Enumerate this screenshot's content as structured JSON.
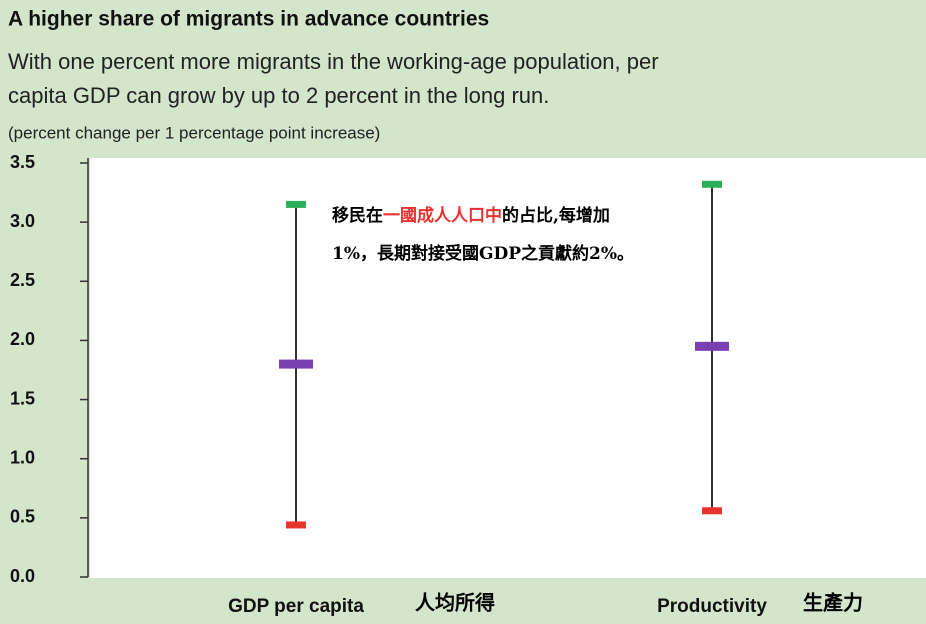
{
  "chart_data": {
    "type": "range",
    "title": "A higher share of migrants in advance countries",
    "subtitle_lines": [
      "With one percent more migrants in the working-age population, per",
      "capita GDP can grow by up to 2 percent in the long run."
    ],
    "y_label": "(percent change per 1 percentage point increase)",
    "categories": [
      "GDP per capita",
      "Productivity"
    ],
    "category_notes": [
      "人均所得",
      "生產力"
    ],
    "series": [
      {
        "color": "#e8342e",
        "values": [
          0.44,
          0.56
        ]
      },
      {
        "color": "#7a3fb0",
        "values": [
          1.8,
          1.95
        ]
      },
      {
        "color": "#2fae5a",
        "values": [
          3.15,
          3.32
        ]
      }
    ],
    "whisker_color": "#333333",
    "ylim": [
      0,
      3.5
    ],
    "yticks": [
      {
        "value": 0,
        "label": "0.0"
      },
      0.5,
      {
        "value": 1,
        "label": "1.0"
      },
      1.5,
      {
        "value": 2,
        "label": "2.0"
      },
      2.5,
      {
        "value": 3,
        "label": "3.0"
      },
      3.5
    ],
    "annotation": [
      [
        {
          "text": "移民在",
          "color": "#000000"
        },
        {
          "text": "一國成人人口中",
          "color": "#e8322e"
        },
        {
          "text": "的占比,每增加",
          "color": "#000000"
        }
      ],
      [
        {
          "text": "1%，長期對接受國GDP之貢獻約2%。",
          "color": "#000000"
        }
      ]
    ]
  }
}
